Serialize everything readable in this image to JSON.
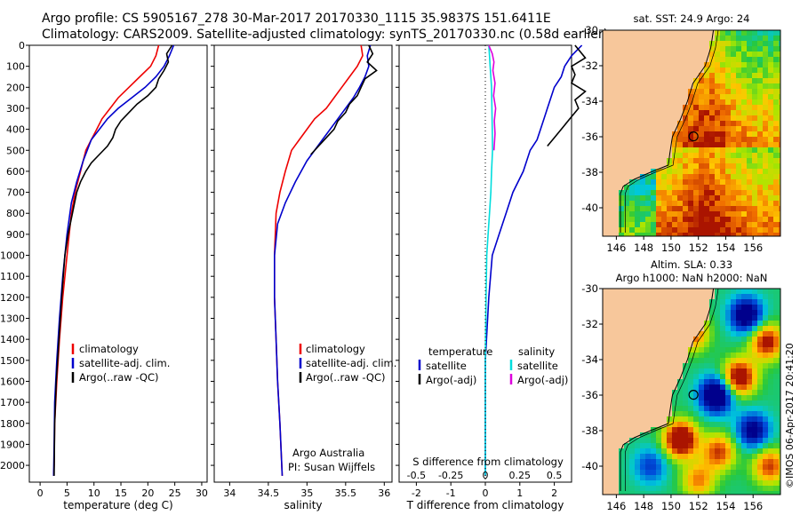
{
  "header": {
    "line1": "Argo profile: CS 5905167_278 30-Mar-2017 20170330_1115 35.9837S 151.6411E",
    "line2": "Climatology: CARS2009. Satellite-adjusted climatology: synTS_20170330.nc (0.58d earlier)"
  },
  "side_text": "©IMOS 06-Apr-2017 20:41:20",
  "colors": {
    "red": "#ee0000",
    "blue": "#0000cc",
    "black": "#000000",
    "cyan": "#00dddd",
    "magenta": "#dd00dd",
    "land": "#f7c79b"
  },
  "chart_data": [
    {
      "type": "line",
      "panel": "temperature",
      "xlabel": "temperature (deg C)",
      "xlim": [
        -2,
        31
      ],
      "xticks": [
        "0",
        "5",
        "10",
        "15",
        "20",
        "25",
        "30"
      ],
      "xtick_values": [
        0,
        5,
        10,
        15,
        20,
        25,
        30
      ],
      "ylim": [
        2080,
        0
      ],
      "yticks": [
        "0",
        "100",
        "200",
        "300",
        "400",
        "500",
        "600",
        "700",
        "800",
        "900",
        "1000",
        "1100",
        "1200",
        "1300",
        "1400",
        "1500",
        "1600",
        "1700",
        "1800",
        "1900",
        "2000"
      ],
      "ytick_values": [
        0,
        100,
        200,
        300,
        400,
        500,
        600,
        700,
        800,
        900,
        1000,
        1100,
        1200,
        1300,
        1400,
        1500,
        1600,
        1700,
        1800,
        1900,
        2000
      ],
      "legend": [
        "climatology",
        "satellite-adj. clim.",
        "Argo(..raw -QC)"
      ],
      "series": [
        {
          "name": "climatology",
          "color": "red",
          "x": [
            22.0,
            21.5,
            20.5,
            18.5,
            16.5,
            14.5,
            13.0,
            11.5,
            10.5,
            9.5,
            8.5,
            7.5,
            6.5,
            5.8,
            5.0,
            4.2,
            3.6,
            3.1,
            2.7,
            2.6,
            2.5
          ],
          "y": [
            0,
            50,
            100,
            150,
            200,
            250,
            300,
            350,
            400,
            450,
            500,
            600,
            700,
            800,
            1000,
            1200,
            1400,
            1600,
            1800,
            2000,
            2050
          ]
        },
        {
          "name": "satellite-adj. clim.",
          "color": "blue",
          "x": [
            24.8,
            24.0,
            23.0,
            21.5,
            19.5,
            17.0,
            14.5,
            12.5,
            11.0,
            9.5,
            8.0,
            6.8,
            5.8,
            5.0,
            4.2,
            3.6,
            3.1,
            2.7,
            2.6,
            2.5
          ],
          "y": [
            0,
            50,
            100,
            150,
            200,
            250,
            300,
            350,
            400,
            450,
            550,
            650,
            750,
            900,
            1100,
            1300,
            1500,
            1700,
            1900,
            2050
          ]
        },
        {
          "name": "Argo(..raw -QC)",
          "color": "black",
          "x": [
            24.5,
            23.5,
            23.8,
            23.0,
            22.0,
            21.5,
            20.0,
            18.0,
            16.5,
            15.0,
            14.0,
            13.5,
            12.5,
            11.0,
            9.5,
            8.5,
            7.5,
            6.8,
            6.0,
            5.2,
            4.6,
            4.0,
            3.5,
            3.0,
            2.7,
            2.6
          ],
          "y": [
            0,
            40,
            80,
            120,
            160,
            200,
            240,
            280,
            320,
            360,
            400,
            440,
            480,
            520,
            560,
            600,
            650,
            700,
            800,
            900,
            1000,
            1200,
            1400,
            1600,
            1800,
            2050
          ]
        }
      ]
    },
    {
      "type": "line",
      "panel": "salinity",
      "xlabel": "salinity",
      "xlim": [
        33.8,
        36.1
      ],
      "xticks": [
        "34",
        "34.5",
        "35",
        "35.5",
        "36"
      ],
      "xtick_values": [
        34,
        34.5,
        35,
        35.5,
        36
      ],
      "ylim": [
        2080,
        0
      ],
      "legend": [
        "climatology",
        "satellite-adj. clim.",
        "Argo(..raw -QC)"
      ],
      "annotation": [
        "Argo Australia",
        "PI: Susan Wijffels"
      ],
      "series": [
        {
          "name": "climatology",
          "color": "red",
          "x": [
            35.7,
            35.72,
            35.65,
            35.55,
            35.45,
            35.35,
            35.25,
            35.1,
            35.0,
            34.9,
            34.8,
            34.72,
            34.65,
            34.6,
            34.58,
            34.58,
            34.6,
            34.62,
            34.65,
            34.68
          ],
          "y": [
            0,
            50,
            100,
            150,
            200,
            250,
            300,
            350,
            400,
            450,
            500,
            600,
            700,
            800,
            1000,
            1200,
            1400,
            1600,
            1800,
            2050
          ]
        },
        {
          "name": "satellite-adj. clim.",
          "color": "blue",
          "x": [
            35.82,
            35.78,
            35.8,
            35.75,
            35.68,
            35.6,
            35.5,
            35.4,
            35.3,
            35.2,
            35.0,
            34.85,
            34.72,
            34.62,
            34.58,
            34.58,
            34.6,
            34.62,
            34.65,
            34.68
          ],
          "y": [
            0,
            50,
            100,
            150,
            200,
            250,
            300,
            350,
            400,
            450,
            550,
            650,
            750,
            850,
            1000,
            1200,
            1400,
            1600,
            1800,
            2050
          ]
        },
        {
          "name": "Argo(..raw -QC)",
          "color": "black",
          "x": [
            35.8,
            35.85,
            35.78,
            35.9,
            35.75,
            35.7,
            35.65,
            35.55,
            35.5,
            35.4,
            35.35,
            35.25,
            35.15,
            35.05
          ],
          "y": [
            0,
            40,
            80,
            120,
            160,
            200,
            240,
            280,
            320,
            360,
            400,
            440,
            480,
            520
          ]
        }
      ]
    },
    {
      "type": "line",
      "panel": "difference",
      "xlabel": "T difference from climatology",
      "xlim": [
        -2.5,
        2.5
      ],
      "xticks": [
        "-2",
        "-1",
        "0",
        "1",
        "2"
      ],
      "xtick_values": [
        -2,
        -1,
        0,
        1,
        2
      ],
      "top_xlabel": "S difference from climatology",
      "top_xticks": [
        "-0.5",
        "-0.25",
        "0",
        "0.25",
        "0.5"
      ],
      "top_xtick_values": [
        -0.5,
        -0.25,
        0,
        0.25,
        0.5
      ],
      "ylim": [
        2080,
        0
      ],
      "legend_temperature": [
        "temperature",
        "satellite",
        "Argo(-adj)"
      ],
      "legend_salinity": [
        "salinity",
        "satellite",
        "Argo(-adj)"
      ],
      "series": [
        {
          "name": "temperature satellite",
          "color": "blue",
          "x": [
            2.8,
            2.5,
            2.3,
            2.2,
            2.0,
            1.9,
            1.8,
            1.7,
            1.6,
            1.5,
            1.3,
            1.1,
            0.8,
            0.6,
            0.4,
            0.2,
            0.1,
            0.0,
            0.0,
            0.0
          ],
          "y": [
            0,
            50,
            100,
            150,
            200,
            250,
            300,
            350,
            400,
            450,
            500,
            600,
            700,
            800,
            900,
            1000,
            1200,
            1500,
            1800,
            2050
          ]
        },
        {
          "name": "temperature Argo(-adj)",
          "color": "black",
          "x": [
            2.6,
            2.9,
            2.5,
            2.6,
            2.5,
            2.9,
            2.6,
            2.7,
            2.5,
            2.2,
            2.0,
            1.8
          ],
          "y": [
            0,
            60,
            100,
            140,
            180,
            220,
            260,
            300,
            340,
            400,
            440,
            480
          ]
        },
        {
          "name": "salinity satellite",
          "color": "cyan",
          "x": [
            0.1,
            0.12,
            0.14,
            0.16,
            0.18,
            0.19,
            0.2,
            0.21,
            0.18,
            0.16,
            0.12,
            0.08,
            0.04,
            0.02,
            0.0,
            0.0,
            0.0
          ],
          "y": [
            0,
            50,
            100,
            150,
            200,
            300,
            400,
            500,
            600,
            700,
            800,
            900,
            1000,
            1200,
            1500,
            1800,
            2050
          ]
        },
        {
          "name": "salinity Argo(-adj)",
          "color": "magenta",
          "x": [
            0.1,
            0.2,
            0.25,
            0.22,
            0.28,
            0.24,
            0.3,
            0.26,
            0.28,
            0.25
          ],
          "y": [
            0,
            40,
            80,
            120,
            180,
            240,
            300,
            360,
            420,
            500
          ]
        }
      ]
    },
    {
      "type": "heatmap",
      "panel": "sst_map",
      "title": "sat. SST: 24.9  Argo: 24",
      "xlim": [
        145,
        158
      ],
      "ylim": [
        -41.6,
        -30
      ],
      "xticks": [
        "146",
        "148",
        "150",
        "152",
        "154",
        "156"
      ],
      "xtick_values": [
        146,
        148,
        150,
        152,
        154,
        156
      ],
      "yticks": [
        "-30",
        "-32",
        "-34",
        "-36",
        "-38",
        "-40"
      ],
      "ytick_values": [
        -30,
        -32,
        -34,
        -36,
        -38,
        -40
      ],
      "marker": {
        "lon": 151.64,
        "lat": -35.98
      }
    },
    {
      "type": "heatmap",
      "panel": "sla_map",
      "title": [
        "Altim. SLA: 0.33",
        "Argo h1000: NaN h2000: NaN"
      ],
      "xlim": [
        145,
        158
      ],
      "ylim": [
        -41.6,
        -30
      ],
      "xticks": [
        "146",
        "148",
        "150",
        "152",
        "154",
        "156"
      ],
      "xtick_values": [
        146,
        148,
        150,
        152,
        154,
        156
      ],
      "yticks": [
        "-30",
        "-32",
        "-34",
        "-36",
        "-38",
        "-40"
      ],
      "ytick_values": [
        -30,
        -32,
        -34,
        -36,
        -38,
        -40
      ],
      "marker": {
        "lon": 151.64,
        "lat": -35.98
      }
    }
  ]
}
